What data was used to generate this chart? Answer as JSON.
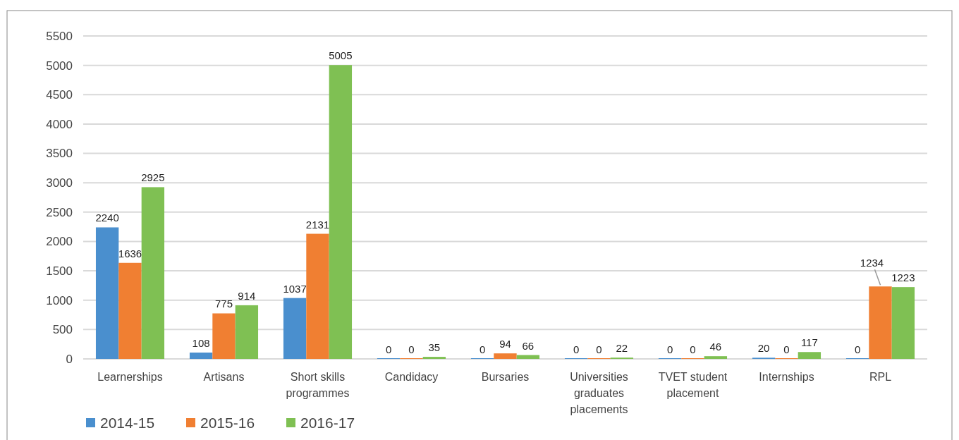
{
  "chart_data": {
    "type": "bar",
    "categories": [
      "Learnerships",
      "Artisans",
      "Short skills programmes",
      "Candidacy",
      "Bursaries",
      "Universities graduates placements",
      "TVET student placement",
      "Internships",
      "RPL"
    ],
    "series": [
      {
        "name": "2014-15",
        "color": "#4a8fce",
        "values": [
          2240,
          108,
          1037,
          0,
          0,
          0,
          0,
          20,
          0
        ]
      },
      {
        "name": "2015-16",
        "color": "#f07f32",
        "values": [
          1636,
          775,
          2131,
          0,
          94,
          0,
          0,
          0,
          1234
        ]
      },
      {
        "name": "2016-17",
        "color": "#7fc053",
        "values": [
          2925,
          914,
          5005,
          35,
          66,
          22,
          46,
          117,
          1223
        ]
      }
    ],
    "ylim": [
      0,
      5500
    ],
    "yticks": [
      0,
      500,
      1000,
      1500,
      2000,
      2500,
      3000,
      3500,
      4000,
      4500,
      5000,
      5500
    ],
    "grid": "y",
    "legend": "bottom left",
    "data_labels": true
  }
}
